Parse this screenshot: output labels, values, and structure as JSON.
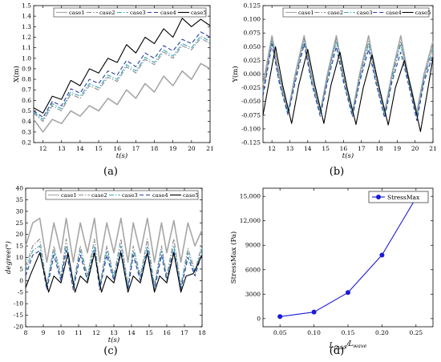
{
  "chart_data": [
    {
      "panel": "(a)",
      "type": "line",
      "ylabel": "X(m)",
      "xlabel": "t(s)",
      "xlim": [
        11.5,
        21
      ],
      "ylim": [
        0.2,
        1.5
      ],
      "xticks": [
        12,
        13,
        14,
        15,
        16,
        17,
        18,
        19,
        20,
        21
      ],
      "yticks": [
        0.2,
        0.3,
        0.4,
        0.5,
        0.6,
        0.7,
        0.8,
        0.9,
        1.0,
        1.1,
        1.2,
        1.3,
        1.4,
        1.5
      ],
      "ytick_labels": [
        "0.2",
        "0.3",
        "0.4",
        "0.5",
        "0.6",
        "0.7",
        "0.8",
        "0.9",
        "1.0",
        "1.1",
        "1.2",
        "1.3",
        "1.4",
        "1.5"
      ],
      "legend_position": "top",
      "series": [
        {
          "name": "case1",
          "color": "#a6a6a6",
          "dash": "solid",
          "x": [
            11.5,
            12,
            12.5,
            13,
            13.5,
            14,
            14.5,
            15,
            15.5,
            16,
            16.5,
            17,
            17.5,
            18,
            18.5,
            19,
            19.5,
            20,
            20.5,
            21
          ],
          "y": [
            0.42,
            0.3,
            0.42,
            0.38,
            0.5,
            0.45,
            0.55,
            0.5,
            0.62,
            0.56,
            0.7,
            0.62,
            0.76,
            0.68,
            0.83,
            0.74,
            0.88,
            0.8,
            0.95,
            0.9
          ]
        },
        {
          "name": "case2",
          "color": "#8a8a8a",
          "dash": "dashdot",
          "x": [
            11.5,
            12,
            12.5,
            13,
            13.5,
            14,
            14.5,
            15,
            15.5,
            16,
            16.5,
            17,
            17.5,
            18,
            18.5,
            19,
            19.5,
            20,
            20.5,
            21
          ],
          "y": [
            0.48,
            0.4,
            0.55,
            0.5,
            0.66,
            0.62,
            0.74,
            0.7,
            0.82,
            0.78,
            0.92,
            0.86,
            0.99,
            0.94,
            1.06,
            1.0,
            1.12,
            1.08,
            1.19,
            1.14
          ]
        },
        {
          "name": "case3",
          "color": "#3fa6b8",
          "dash": "dashdot",
          "x": [
            11.5,
            12,
            12.5,
            13,
            13.5,
            14,
            14.5,
            15,
            15.5,
            16,
            16.5,
            17,
            17.5,
            18,
            18.5,
            19,
            19.5,
            20,
            20.5,
            21
          ],
          "y": [
            0.49,
            0.42,
            0.57,
            0.52,
            0.68,
            0.64,
            0.76,
            0.72,
            0.84,
            0.8,
            0.94,
            0.88,
            1.01,
            0.96,
            1.08,
            1.02,
            1.14,
            1.1,
            1.21,
            1.16
          ]
        },
        {
          "name": "case4",
          "color": "#2a3fa0",
          "dash": "dash",
          "x": [
            11.5,
            12,
            12.5,
            13,
            13.5,
            14,
            14.5,
            15,
            15.5,
            16,
            16.5,
            17,
            17.5,
            18,
            18.5,
            19,
            19.5,
            20,
            20.5,
            21
          ],
          "y": [
            0.5,
            0.44,
            0.59,
            0.55,
            0.71,
            0.67,
            0.8,
            0.76,
            0.88,
            0.84,
            0.98,
            0.92,
            1.05,
            1.0,
            1.12,
            1.07,
            1.18,
            1.14,
            1.25,
            1.2
          ]
        },
        {
          "name": "case5",
          "color": "#000000",
          "dash": "solid",
          "x": [
            11.5,
            12,
            12.5,
            13,
            13.5,
            14,
            14.5,
            15,
            15.5,
            16,
            16.5,
            17,
            17.5,
            18,
            18.5,
            19,
            19.5,
            20,
            20.5,
            21
          ],
          "y": [
            0.53,
            0.48,
            0.64,
            0.61,
            0.79,
            0.74,
            0.9,
            0.86,
            1.0,
            0.96,
            1.13,
            1.05,
            1.2,
            1.14,
            1.28,
            1.2,
            1.38,
            1.3,
            1.37,
            1.31
          ]
        }
      ]
    },
    {
      "panel": "(b)",
      "type": "line",
      "ylabel": "Y(m)",
      "xlabel": "t(s)",
      "xlim": [
        11.5,
        21
      ],
      "ylim": [
        -0.125,
        0.125
      ],
      "xticks": [
        12,
        13,
        14,
        15,
        16,
        17,
        18,
        19,
        20,
        21
      ],
      "yticks": [
        -0.125,
        -0.1,
        -0.075,
        -0.05,
        -0.025,
        0,
        0.025,
        0.05,
        0.075,
        0.1,
        0.125
      ],
      "ytick_labels": [
        "-0.125",
        "-0.100",
        "-0.075",
        "-0.050",
        "-0.025",
        "0.000",
        "0.025",
        "0.050",
        "0.075",
        "0.100",
        "0.125"
      ],
      "legend_position": "top",
      "series": [
        {
          "name": "case1",
          "color": "#a6a6a6",
          "dash": "solid",
          "x": [
            11.5,
            12,
            12.4,
            12.9,
            13.3,
            13.8,
            14.2,
            14.7,
            15.1,
            15.6,
            16.0,
            16.5,
            16.9,
            17.4,
            17.8,
            18.3,
            18.7,
            19.2,
            19.6,
            20.1,
            20.5,
            21
          ],
          "y": [
            -0.02,
            0.07,
            0.0,
            -0.07,
            0.0,
            0.07,
            0.0,
            -0.07,
            0.0,
            0.07,
            0.0,
            -0.07,
            0.0,
            0.07,
            0.0,
            -0.07,
            0.0,
            0.07,
            0.0,
            -0.07,
            0.0,
            0.06
          ]
        },
        {
          "name": "case2",
          "color": "#8a8a8a",
          "dash": "dashdot",
          "x": [
            11.5,
            12,
            12.4,
            12.9,
            13.3,
            13.8,
            14.2,
            14.7,
            15.1,
            15.6,
            16.0,
            16.5,
            16.9,
            17.4,
            17.8,
            18.3,
            18.7,
            19.2,
            19.6,
            20.1,
            20.5,
            21
          ],
          "y": [
            -0.03,
            0.065,
            -0.005,
            -0.07,
            -0.005,
            0.065,
            -0.005,
            -0.07,
            -0.005,
            0.065,
            -0.005,
            -0.07,
            -0.005,
            0.06,
            -0.005,
            -0.072,
            -0.005,
            0.06,
            -0.005,
            -0.075,
            -0.005,
            0.05
          ]
        },
        {
          "name": "case3",
          "color": "#3fa6b8",
          "dash": "dashdot",
          "x": [
            11.5,
            12,
            12.4,
            12.9,
            13.3,
            13.8,
            14.2,
            14.7,
            15.1,
            15.6,
            16.0,
            16.5,
            16.9,
            17.4,
            17.8,
            18.3,
            18.7,
            19.2,
            19.6,
            20.1,
            20.5,
            21
          ],
          "y": [
            -0.035,
            0.06,
            -0.01,
            -0.072,
            -0.01,
            0.06,
            -0.01,
            -0.072,
            -0.01,
            0.06,
            -0.01,
            -0.073,
            -0.01,
            0.055,
            -0.01,
            -0.075,
            -0.01,
            0.055,
            -0.01,
            -0.078,
            -0.01,
            0.045
          ]
        },
        {
          "name": "case4",
          "color": "#2a3fa0",
          "dash": "dash",
          "x": [
            11.5,
            12,
            12.4,
            12.9,
            13.3,
            13.8,
            14.2,
            14.7,
            15.1,
            15.6,
            16.0,
            16.5,
            16.9,
            17.4,
            17.8,
            18.3,
            18.7,
            19.2,
            19.6,
            20.1,
            20.5,
            21
          ],
          "y": [
            -0.04,
            0.055,
            -0.015,
            -0.075,
            -0.015,
            0.055,
            -0.015,
            -0.077,
            -0.015,
            0.05,
            -0.015,
            -0.078,
            -0.015,
            0.045,
            -0.015,
            -0.08,
            -0.015,
            0.04,
            -0.015,
            -0.085,
            -0.015,
            0.035
          ]
        },
        {
          "name": "case5",
          "color": "#000000",
          "dash": "solid",
          "x": [
            11.5,
            12.2,
            12.6,
            13.1,
            13.5,
            14.0,
            14.4,
            14.9,
            15.3,
            15.8,
            16.2,
            16.7,
            17.1,
            17.6,
            18.0,
            18.5,
            18.9,
            19.4,
            19.8,
            20.3,
            20.7,
            21
          ],
          "y": [
            -0.075,
            0.05,
            -0.02,
            -0.09,
            -0.02,
            0.045,
            -0.02,
            -0.09,
            -0.02,
            0.04,
            -0.025,
            -0.092,
            -0.025,
            0.035,
            -0.025,
            -0.093,
            -0.025,
            0.025,
            -0.03,
            -0.105,
            -0.03,
            0.03
          ]
        }
      ]
    },
    {
      "panel": "(c)",
      "type": "line",
      "ylabel": "degree(°)",
      "xlabel": "t(s)",
      "xlim": [
        8,
        18
      ],
      "ylim": [
        -20,
        40
      ],
      "xticks": [
        8,
        9,
        10,
        11,
        12,
        13,
        14,
        15,
        16,
        17,
        18
      ],
      "yticks": [
        -20,
        -15,
        -10,
        -5,
        0,
        5,
        10,
        15,
        20,
        25,
        30,
        35,
        40
      ],
      "ytick_labels": [
        "-20",
        "-15",
        "-10",
        "-5",
        "0",
        "5",
        "10",
        "15",
        "20",
        "25",
        "30",
        "35",
        "40"
      ],
      "legend_position": "top",
      "series": [
        {
          "name": "case1",
          "color": "#a6a6a6",
          "dash": "solid",
          "x": [
            8,
            8.4,
            8.8,
            9.2,
            9.6,
            10.0,
            10.3,
            10.7,
            11.1,
            11.5,
            11.9,
            12.2,
            12.6,
            13.0,
            13.4,
            13.8,
            14.1,
            14.5,
            14.9,
            15.3,
            15.7,
            16.0,
            16.4,
            16.8,
            17.2,
            17.6,
            18
          ],
          "y": [
            15,
            25,
            27,
            8,
            25,
            12,
            27,
            8,
            25,
            12,
            27,
            8,
            25,
            12,
            27,
            8,
            25,
            12,
            27,
            8,
            25,
            12,
            26,
            8,
            25,
            15,
            22
          ]
        },
        {
          "name": "case2",
          "color": "#8a8a8a",
          "dash": "dashdot",
          "x": [
            8,
            8.4,
            8.8,
            9.2,
            9.6,
            10.0,
            10.3,
            10.7,
            11.1,
            11.5,
            11.9,
            12.2,
            12.6,
            13.0,
            13.4,
            13.8,
            14.1,
            14.5,
            14.9,
            15.3,
            15.7,
            16.0,
            16.4,
            16.8,
            17.2,
            17.6,
            18
          ],
          "y": [
            6,
            15,
            18,
            -2,
            15,
            2,
            18,
            -2,
            15,
            2,
            18,
            -2,
            15,
            2,
            18,
            -2,
            15,
            2,
            18,
            -2,
            15,
            2,
            18,
            -2,
            14,
            4,
            16
          ]
        },
        {
          "name": "case3",
          "color": "#3fa6b8",
          "dash": "dashdot",
          "x": [
            8,
            8.4,
            8.8,
            9.2,
            9.6,
            10.0,
            10.3,
            10.7,
            11.1,
            11.5,
            11.9,
            12.2,
            12.6,
            13.0,
            13.4,
            13.8,
            14.1,
            14.5,
            14.9,
            15.3,
            15.7,
            16.0,
            16.4,
            16.8,
            17.2,
            17.6,
            18
          ],
          "y": [
            4,
            13,
            15,
            -3,
            13,
            1,
            15,
            -3,
            13,
            1,
            15,
            -3,
            13,
            1,
            15,
            -3,
            13,
            1,
            15,
            -3,
            13,
            1,
            15,
            -3,
            12,
            3,
            14
          ]
        },
        {
          "name": "case4",
          "color": "#2a3fa0",
          "dash": "dash",
          "x": [
            8,
            8.4,
            8.8,
            9.2,
            9.6,
            10.0,
            10.3,
            10.7,
            11.1,
            11.5,
            11.9,
            12.2,
            12.6,
            13.0,
            13.4,
            13.8,
            14.1,
            14.5,
            14.9,
            15.3,
            15.7,
            16.0,
            16.4,
            16.8,
            17.2,
            17.6,
            18
          ],
          "y": [
            2,
            11,
            13,
            -4,
            11,
            0,
            13,
            -4,
            11,
            0,
            13,
            -4,
            11,
            0,
            13,
            -4,
            11,
            0,
            13,
            -4,
            11,
            0,
            13,
            -4,
            10,
            2,
            12
          ]
        },
        {
          "name": "case5",
          "color": "#000000",
          "dash": "solid",
          "x": [
            8,
            8.3,
            8.8,
            9.3,
            9.6,
            10.0,
            10.4,
            10.8,
            11.1,
            11.5,
            11.9,
            12.3,
            12.6,
            13.0,
            13.4,
            13.8,
            14.1,
            14.5,
            14.9,
            15.3,
            15.6,
            16.0,
            16.4,
            16.8,
            17.1,
            17.5,
            18
          ],
          "y": [
            -3,
            3,
            12,
            -5,
            2,
            -1,
            12,
            -5,
            2,
            -1,
            12,
            -5,
            2,
            -1,
            12,
            -5,
            2,
            -1,
            12,
            -5,
            2,
            -1,
            12,
            -5,
            2,
            3,
            11
          ]
        }
      ]
    },
    {
      "panel": "(d)",
      "type": "line",
      "ylabel": "StressMax (Pa)",
      "xlabel": "Lfluid/Lwave",
      "xlabel_main": "L",
      "xlabel_sub1": "fluid",
      "xlabel_mid": "/",
      "xlabel_main2": "L",
      "xlabel_sub2": "wave",
      "xlim": [
        0.025,
        0.275
      ],
      "ylim": [
        -1000,
        16000
      ],
      "xticks": [
        0.05,
        0.1,
        0.15,
        0.2,
        0.25
      ],
      "xtick_labels": [
        "0.05",
        "0.10",
        "0.15",
        "0.20",
        "0.25"
      ],
      "yticks": [
        0,
        3000,
        6000,
        9000,
        12000,
        15000
      ],
      "ytick_labels": [
        "0",
        "3000",
        "6000",
        "9000",
        "12,000",
        "15,000"
      ],
      "legend_position": "top-right",
      "series": [
        {
          "name": "StressMax",
          "color": "#1a1ad6",
          "marker": "circle",
          "x": [
            0.05,
            0.1,
            0.15,
            0.2,
            0.25
          ],
          "y": [
            250,
            800,
            3200,
            7800,
            14800
          ]
        }
      ]
    }
  ],
  "panel_labels": {
    "a": "(a)",
    "b": "(b)",
    "c": "(c)",
    "d": "(d)"
  }
}
